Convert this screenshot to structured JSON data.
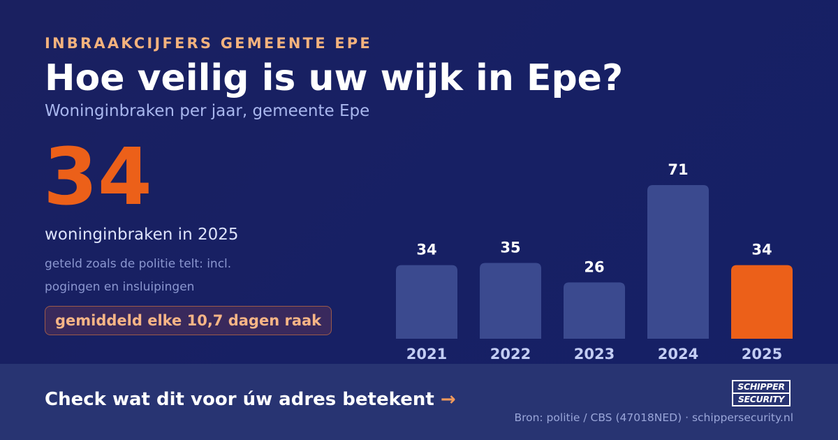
{
  "header": {
    "kicker": "INBRAAKCIJFERS GEMEENTE EPE",
    "title": "Hoe veilig is uw wijk in Epe?",
    "subtitle": "Woninginbraken per jaar, gemeente Epe"
  },
  "highlight": {
    "number": "34",
    "label": "woninginbraken in 2025",
    "note_line1": "geteld zoals de politie telt: incl.",
    "note_line2": "pogingen en insluipingen",
    "badge": "gemiddeld elke 10,7 dagen raak"
  },
  "chart_data": {
    "type": "bar",
    "categories": [
      "2021",
      "2022",
      "2023",
      "2024",
      "2025"
    ],
    "values": [
      34,
      35,
      26,
      71,
      34
    ],
    "highlight_category": "2025",
    "title": "",
    "xlabel": "",
    "ylabel": "",
    "ylim": [
      0,
      71
    ],
    "grid": false,
    "colors": {
      "bar": "#3b4a8f",
      "highlight": "#ec6019",
      "value_label": "#ffffff",
      "tick_label": "#c3cdf3"
    }
  },
  "footer": {
    "cta_text": "Check wat dit voor úw adres betekent",
    "cta_arrow": "→",
    "logo_line1": "SCHIPPER",
    "logo_line2": "SECURITY",
    "source": "Bron: politie / CBS (47018NED) · schippersecurity.nl"
  }
}
